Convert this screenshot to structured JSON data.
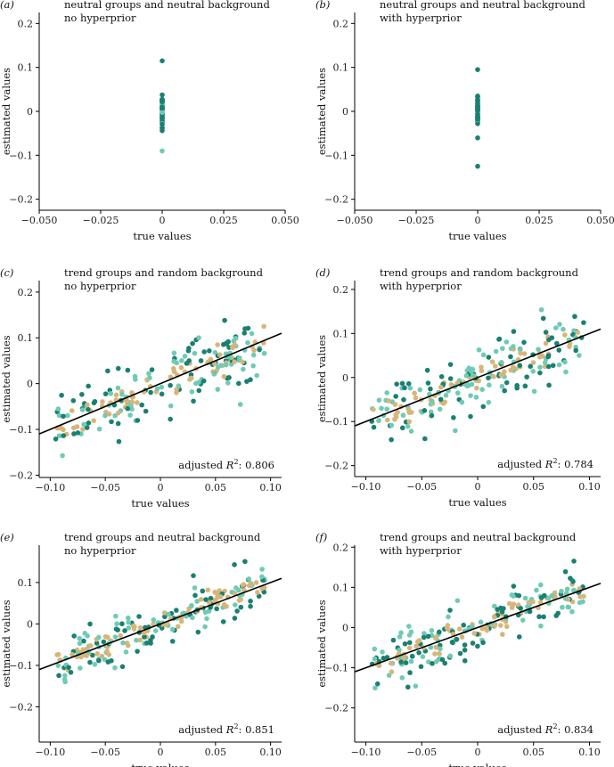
{
  "colors": {
    "teal_dark": "#1a8071",
    "teal_light": "#6fcab6",
    "tan": "#d7b57a",
    "line": "#000000"
  },
  "chart_data": [
    {
      "id": "a",
      "panel_label": "(a)",
      "type": "scatter",
      "title_line1": "neutral groups and neutral background",
      "title_line2": "no hyperprior",
      "xlabel": "true values",
      "ylabel": "estimated values",
      "xlim": [
        -0.05,
        0.05
      ],
      "ylim": [
        -0.225,
        0.225
      ],
      "xticks": [
        -0.05,
        -0.025,
        0,
        0.025,
        0.05
      ],
      "xtick_labels": [
        "−0.050",
        "−0.025",
        "0",
        "0.025",
        "0.050"
      ],
      "yticks": [
        -0.2,
        -0.1,
        0,
        0.1,
        0.2
      ],
      "ytick_labels": [
        "−0.2",
        "−0.1",
        "0",
        "0.1",
        "0.2"
      ],
      "x_points": [
        0
      ],
      "y_min": -0.09,
      "y_max": 0.115,
      "n_points": 45,
      "regression": null,
      "annotation": null
    },
    {
      "id": "b",
      "panel_label": "(b)",
      "type": "scatter",
      "title_line1": "neutral groups and neutral background",
      "title_line2": "with hyperprior",
      "xlabel": "true values",
      "ylabel": "estimated values",
      "xlim": [
        -0.05,
        0.05
      ],
      "ylim": [
        -0.225,
        0.225
      ],
      "xticks": [
        -0.05,
        -0.025,
        0,
        0.025,
        0.05
      ],
      "xtick_labels": [
        "−0.050",
        "−0.025",
        "0",
        "0.025",
        "0.050"
      ],
      "yticks": [
        -0.2,
        -0.1,
        0,
        0.1,
        0.2
      ],
      "ytick_labels": [
        "−0.2",
        "−0.1",
        "0",
        "0.1",
        "0.2"
      ],
      "x_points": [
        0
      ],
      "y_min": -0.125,
      "y_max": 0.095,
      "n_points": 40,
      "regression": null,
      "annotation": null
    },
    {
      "id": "c",
      "panel_label": "(c)",
      "type": "scatter",
      "title_line1": "trend groups and random background",
      "title_line2": "no hyperprior",
      "xlabel": "true values",
      "ylabel": "estimated values",
      "xlim": [
        -0.11,
        0.11
      ],
      "ylim": [
        -0.205,
        0.225
      ],
      "xticks": [
        -0.1,
        -0.05,
        0,
        0.05,
        0.1
      ],
      "xtick_labels": [
        "−0.10",
        "−0.05",
        "0",
        "0.05",
        "0.10"
      ],
      "yticks": [
        -0.2,
        -0.1,
        0,
        0.1,
        0.2
      ],
      "ytick_labels": [
        "−0.2",
        "−0.1",
        "0",
        "0.1",
        "0.2"
      ],
      "noise": 0.035,
      "n_points": 220,
      "regression": {
        "slope": 1.0,
        "intercept": 0
      },
      "annotation": {
        "text": "adjusted",
        "r2_symbol": "R",
        "r2_exp": "2",
        "value": ": 0.806"
      }
    },
    {
      "id": "d",
      "panel_label": "(d)",
      "type": "scatter",
      "title_line1": "trend groups and random background",
      "title_line2": "with hyperprior",
      "xlabel": "true values",
      "ylabel": "estimated values",
      "xlim": [
        -0.11,
        0.11
      ],
      "ylim": [
        -0.225,
        0.22
      ],
      "xticks": [
        -0.1,
        -0.05,
        0,
        0.05,
        0.1
      ],
      "xtick_labels": [
        "−0.10",
        "−0.05",
        "0",
        "0.05",
        "0.10"
      ],
      "yticks": [
        -0.2,
        -0.1,
        0,
        0.1,
        0.2
      ],
      "ytick_labels": [
        "−0.2",
        "−0.1",
        "0",
        "0.1",
        "0.2"
      ],
      "noise": 0.038,
      "n_points": 220,
      "regression": {
        "slope": 1.0,
        "intercept": 0
      },
      "annotation": {
        "text": "adjusted",
        "r2_symbol": "R",
        "r2_exp": "2",
        "value": ": 0.784"
      }
    },
    {
      "id": "e",
      "panel_label": "(e)",
      "type": "scatter",
      "title_line1": "trend groups and neutral background",
      "title_line2": "no hyperprior",
      "xlabel": "true values",
      "ylabel": "estimated values",
      "xlim": [
        -0.11,
        0.11
      ],
      "ylim": [
        -0.285,
        0.19
      ],
      "xticks": [
        -0.1,
        -0.05,
        0,
        0.05,
        0.1
      ],
      "xtick_labels": [
        "−0.10",
        "−0.05",
        "0",
        "0.05",
        "0.10"
      ],
      "yticks": [
        -0.2,
        -0.1,
        0,
        0.1
      ],
      "ytick_labels": [
        "−0.2",
        "−0.1",
        "0",
        "0.1"
      ],
      "noise": 0.03,
      "n_points": 220,
      "regression": {
        "slope": 1.0,
        "intercept": 0
      },
      "annotation": {
        "text": "adjusted",
        "r2_symbol": "R",
        "r2_exp": "2",
        "value": ": 0.851"
      }
    },
    {
      "id": "f",
      "panel_label": "(f)",
      "type": "scatter",
      "title_line1": "trend groups and neutral background",
      "title_line2": "with hyperprior",
      "xlabel": "true values",
      "ylabel": "estimated values",
      "xlim": [
        -0.11,
        0.11
      ],
      "ylim": [
        -0.285,
        0.205
      ],
      "xticks": [
        -0.1,
        -0.05,
        0,
        0.05,
        0.1
      ],
      "xtick_labels": [
        "−0.10",
        "−0.05",
        "0",
        "0.05",
        "0.10"
      ],
      "yticks": [
        -0.2,
        -0.1,
        0,
        0.1,
        0.2
      ],
      "ytick_labels": [
        "−0.2",
        "−0.1",
        "0",
        "0.1",
        "0.2"
      ],
      "noise": 0.032,
      "n_points": 220,
      "regression": {
        "slope": 1.0,
        "intercept": 0
      },
      "annotation": {
        "text": "adjusted",
        "r2_symbol": "R",
        "r2_exp": "2",
        "value": ": 0.834"
      }
    }
  ]
}
